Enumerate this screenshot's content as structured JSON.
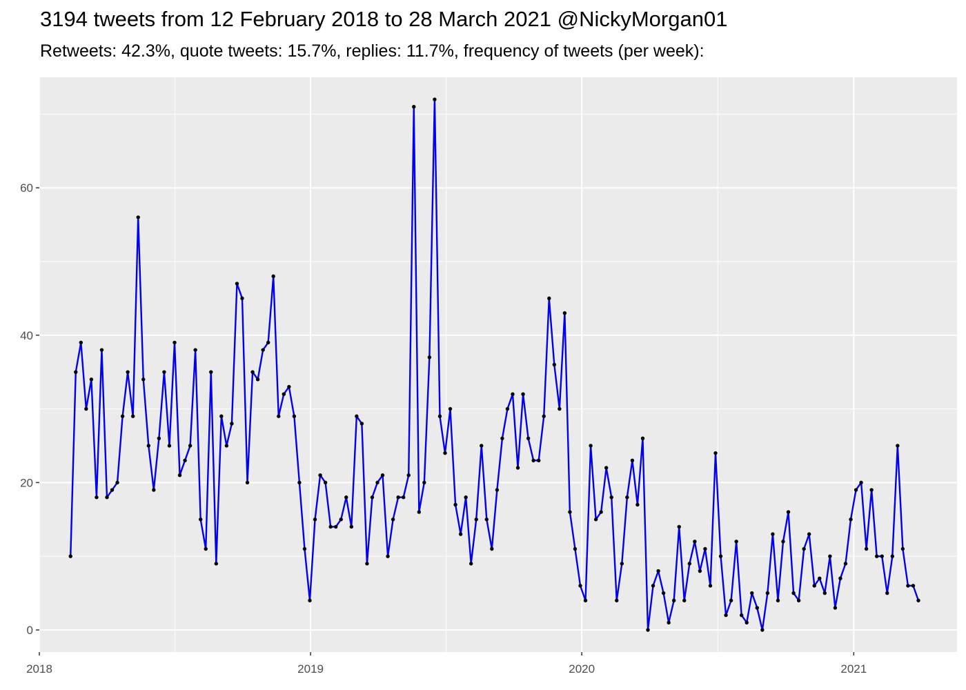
{
  "chart_data": {
    "type": "line",
    "title": "3194 tweets from 12 February 2018 to 28 March 2021 @NickyMorgan01",
    "subtitle": "Retweets: 42.3%, quote tweets: 15.7%, replies: 11.7%, frequency of tweets (per week):",
    "xlabel": "",
    "ylabel": "",
    "x_axis": {
      "type": "date",
      "range": [
        "2018-01-01",
        "2021-05-20"
      ],
      "ticks": [
        {
          "date": "2018-01-01",
          "label": "2018"
        },
        {
          "date": "2019-01-01",
          "label": "2019"
        },
        {
          "date": "2020-01-01",
          "label": "2020"
        },
        {
          "date": "2021-01-01",
          "label": "2021"
        }
      ]
    },
    "y_axis": {
      "range": [
        -3,
        75
      ],
      "ticks": [
        0,
        20,
        40,
        60
      ],
      "tick_labels": [
        "0",
        "20",
        "40",
        "60"
      ]
    },
    "grid": true,
    "line_color": "#0000ee",
    "point_color": "#000000",
    "panel_color": "#ebebeb",
    "series": [
      {
        "start_date": "2018-02-12",
        "interval": "week",
        "values": [
          10,
          35,
          39,
          30,
          34,
          18,
          38,
          18,
          19,
          20,
          29,
          35,
          29,
          56,
          34,
          25,
          19,
          26,
          35,
          25,
          39,
          21,
          23,
          25,
          38,
          15,
          11,
          35,
          9,
          29,
          25,
          28,
          47,
          45,
          20,
          35,
          34,
          38,
          39,
          48,
          29,
          32,
          33,
          29,
          20,
          11,
          4,
          15,
          21,
          20,
          14,
          14,
          15,
          18,
          14,
          29,
          28,
          9,
          18,
          20,
          21,
          10,
          15,
          18,
          18,
          21,
          71,
          16,
          20,
          37,
          72,
          29,
          24,
          30,
          17,
          13,
          18,
          9,
          15,
          25,
          15,
          11,
          19,
          26,
          30,
          32,
          22,
          32,
          26,
          23,
          23,
          29,
          45,
          36,
          30,
          43,
          16,
          11,
          6,
          4,
          25,
          15,
          16,
          22,
          18,
          4,
          9,
          18,
          23,
          17,
          26,
          0,
          6,
          8,
          5,
          1,
          4,
          14,
          4,
          9,
          12,
          8,
          11,
          6,
          24,
          10,
          2,
          4,
          12,
          2,
          1,
          5,
          3,
          0,
          5,
          13,
          4,
          12,
          16,
          5,
          4,
          11,
          13,
          6,
          7,
          5,
          10,
          3,
          7,
          9,
          15,
          19,
          20,
          11,
          19,
          10,
          10,
          5,
          10,
          25,
          11,
          6,
          6,
          4
        ]
      }
    ]
  }
}
